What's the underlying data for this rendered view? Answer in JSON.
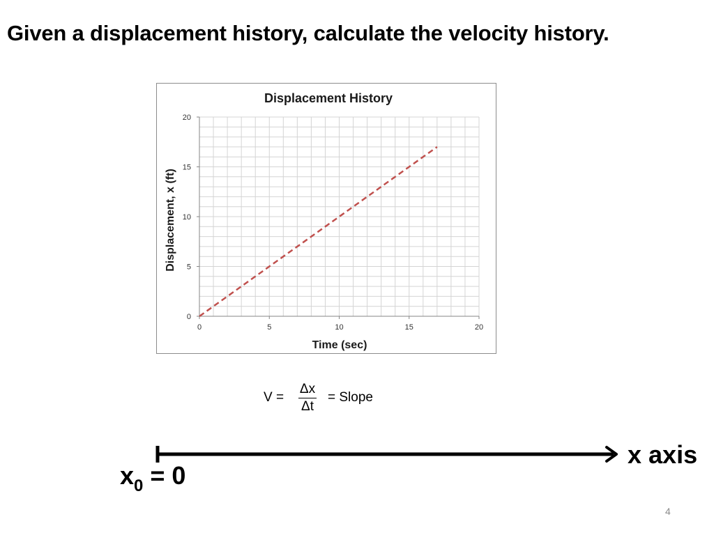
{
  "slide": {
    "title": "Given a displacement history, calculate the velocity history.",
    "page_number": "4"
  },
  "chart_data": {
    "type": "line",
    "title": "Displacement History",
    "xlabel": "Time (sec)",
    "ylabel": "Displacement, x (ft)",
    "xlim": [
      0,
      20
    ],
    "ylim": [
      0,
      20
    ],
    "xticks": [
      0,
      5,
      10,
      15,
      20
    ],
    "yticks": [
      0,
      5,
      10,
      15,
      20
    ],
    "grid": true,
    "grid_minor_step": 1,
    "series": [
      {
        "x": [
          0,
          17
        ],
        "y": [
          0,
          17
        ],
        "line_style": "dashed",
        "color": "#c0504d"
      }
    ]
  },
  "formula": {
    "lhs": "V =",
    "numerator": "Δx",
    "denominator": "Δt",
    "rhs": "= Slope"
  },
  "axis_diagram": {
    "axis_label": "x axis",
    "origin_var": "x",
    "origin_subscript": "0",
    "origin_value": "= 0"
  }
}
